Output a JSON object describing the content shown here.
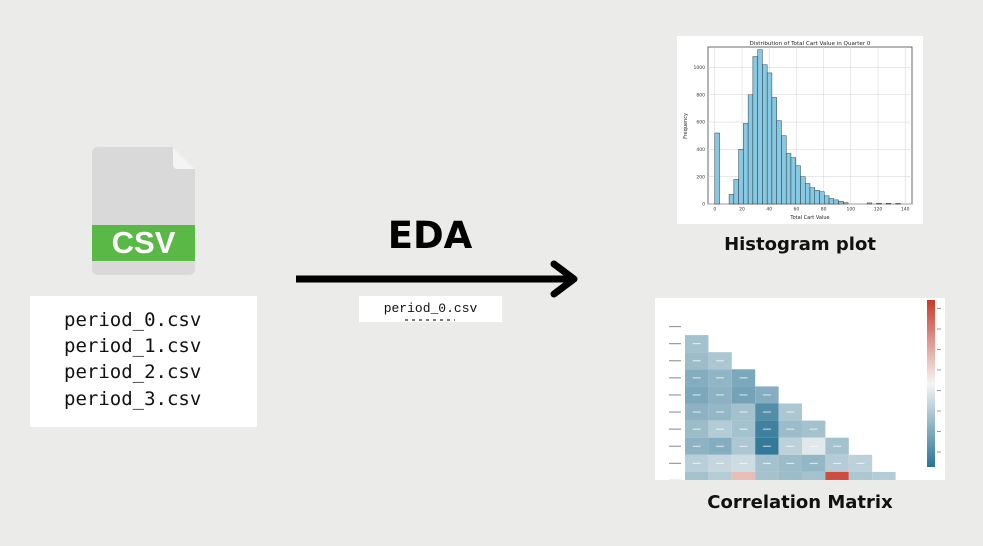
{
  "csv_icon": {
    "badge_text": "CSV",
    "page_color": "#d9d9d9",
    "fold_color": "#f4f4f4",
    "badge_color": "#5ab946",
    "badge_text_color": "#ffffff"
  },
  "files": [
    "period_0.csv",
    "period_1.csv",
    "period_2.csv",
    "period_3.csv"
  ],
  "process_label": "EDA",
  "moving_file": "period_0.csv",
  "histogram": {
    "caption": "Histogram plot",
    "bar_color": "#87c9e3",
    "chart_data": {
      "type": "bar",
      "title": "Distribution of Total Cart Value in Quarter 0",
      "xlabel": "Total Cart Value",
      "ylabel": "Frequency",
      "xlim": [
        -5,
        145
      ],
      "ylim": [
        0,
        1150
      ],
      "xticks": [
        0,
        20,
        40,
        60,
        80,
        100,
        120,
        140
      ],
      "yticks": [
        0,
        200,
        400,
        600,
        800,
        1000
      ],
      "bin_width": 3.5,
      "bin_starts": [
        0,
        10.5,
        14,
        17.5,
        21,
        24.5,
        28,
        31.5,
        35,
        38.5,
        42,
        45.5,
        49,
        52.5,
        56,
        59.5,
        63,
        66.5,
        70,
        73.5,
        77,
        80.5,
        84,
        87.5,
        91,
        94.5,
        112,
        119,
        126,
        133
      ],
      "values": [
        520,
        70,
        180,
        400,
        590,
        800,
        1080,
        1130,
        1020,
        960,
        780,
        610,
        500,
        370,
        340,
        280,
        200,
        150,
        120,
        100,
        90,
        60,
        40,
        30,
        20,
        10,
        8,
        6,
        5,
        4
      ],
      "grid": true
    }
  },
  "correlation": {
    "caption": "Correlation Matrix",
    "chart_data": {
      "type": "heatmap",
      "note": "lower-triangular correlation heatmap with diverging blue-to-red colorbar",
      "rows": 10,
      "colorbar_range": [
        -1,
        1
      ],
      "cells": [
        [],
        [
          0.3
        ],
        [
          0.28,
          0.32
        ],
        [
          0.22,
          0.25,
          0.2
        ],
        [
          0.2,
          0.24,
          0.18,
          0.22
        ],
        [
          0.24,
          0.26,
          0.3,
          0.1,
          0.32
        ],
        [
          0.28,
          0.34,
          0.3,
          0.05,
          0.28,
          0.3
        ],
        [
          0.24,
          0.22,
          0.32,
          0.02,
          0.36,
          0.45,
          0.3
        ],
        [
          0.35,
          0.38,
          0.4,
          0.3,
          0.28,
          0.26,
          0.34,
          0.36
        ],
        [
          0.3,
          0.34,
          0.65,
          0.3,
          0.28,
          0.3,
          0.95,
          0.32,
          0.34
        ]
      ]
    }
  }
}
